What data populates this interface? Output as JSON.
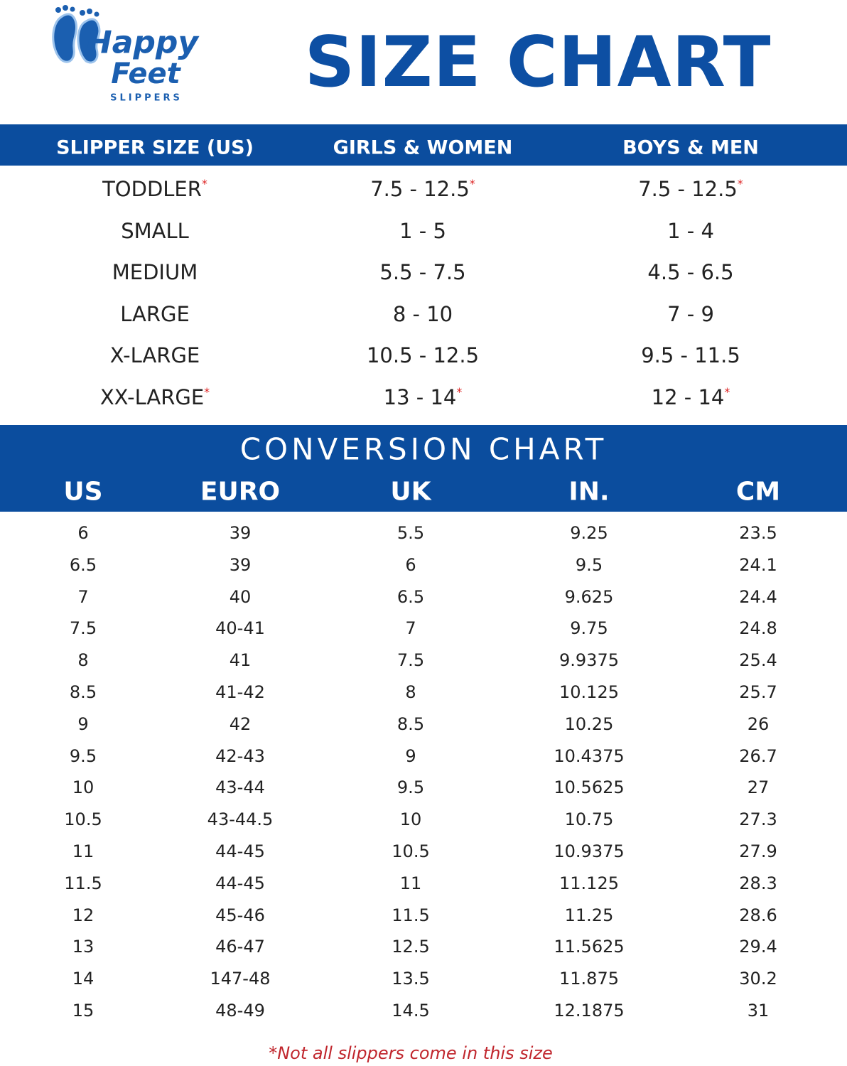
{
  "logo": {
    "line1": "Happy",
    "line2": "Feet",
    "tagline": "SLIPPERS"
  },
  "title": "SIZE CHART",
  "size_table": {
    "headers": [
      "SLIPPER SIZE (US)",
      "GIRLS & WOMEN",
      "BOYS & MEN"
    ],
    "rows": [
      [
        {
          "text": "TODDLER",
          "note": "*"
        },
        {
          "text": "7.5 - 12.5",
          "note": "*"
        },
        {
          "text": "7.5 - 12.5",
          "note": "*"
        }
      ],
      [
        {
          "text": "SMALL"
        },
        {
          "text": "1 - 5"
        },
        {
          "text": "1 - 4"
        }
      ],
      [
        {
          "text": "MEDIUM"
        },
        {
          "text": "5.5 - 7.5"
        },
        {
          "text": "4.5 - 6.5"
        }
      ],
      [
        {
          "text": "LARGE"
        },
        {
          "text": "8 - 10"
        },
        {
          "text": "7 - 9"
        }
      ],
      [
        {
          "text": "X-LARGE"
        },
        {
          "text": "10.5 - 12.5"
        },
        {
          "text": "9.5 - 11.5"
        }
      ],
      [
        {
          "text": "XX-LARGE",
          "note": "*"
        },
        {
          "text": "13 - 14",
          "note": "*"
        },
        {
          "text": "12 - 14",
          "note": "*"
        }
      ]
    ]
  },
  "conversion": {
    "title": "CONVERSION CHART",
    "headers": [
      "US",
      "EURO",
      "UK",
      "IN.",
      "CM"
    ],
    "rows": [
      [
        "6",
        "39",
        "5.5",
        "9.25",
        "23.5"
      ],
      [
        "6.5",
        "39",
        "6",
        "9.5",
        "24.1"
      ],
      [
        "7",
        "40",
        "6.5",
        "9.625",
        "24.4"
      ],
      [
        "7.5",
        "40-41",
        "7",
        "9.75",
        "24.8"
      ],
      [
        "8",
        "41",
        "7.5",
        "9.9375",
        "25.4"
      ],
      [
        "8.5",
        "41-42",
        "8",
        "10.125",
        "25.7"
      ],
      [
        "9",
        "42",
        "8.5",
        "10.25",
        "26"
      ],
      [
        "9.5",
        "42-43",
        "9",
        "10.4375",
        "26.7"
      ],
      [
        "10",
        "43-44",
        "9.5",
        "10.5625",
        "27"
      ],
      [
        "10.5",
        "43-44.5",
        "10",
        "10.75",
        "27.3"
      ],
      [
        "11",
        "44-45",
        "10.5",
        "10.9375",
        "27.9"
      ],
      [
        "11.5",
        "44-45",
        "11",
        "11.125",
        "28.3"
      ],
      [
        "12",
        "45-46",
        "11.5",
        "11.25",
        "28.6"
      ],
      [
        "13",
        "46-47",
        "12.5",
        "11.5625",
        "29.4"
      ],
      [
        "14",
        "147-48",
        "13.5",
        "11.875",
        "30.2"
      ],
      [
        "15",
        "48-49",
        "14.5",
        "12.1875",
        "31"
      ]
    ]
  },
  "footnote": "*Not all slippers come in this size"
}
